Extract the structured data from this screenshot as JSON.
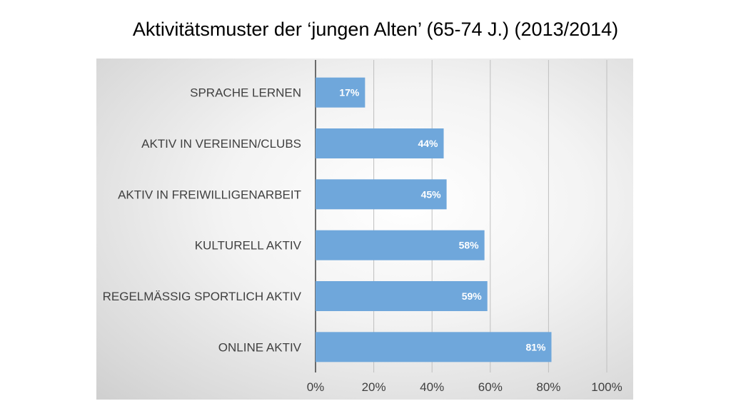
{
  "title": "Aktivitätsmuster der ‘jungen Alten’ (65-74 J.) (2013/2014)",
  "chart_data": {
    "type": "bar",
    "orientation": "horizontal",
    "title": "Aktivitätsmuster der ‘jungen Alten’ (65-74 J.) (2013/2014)",
    "categories": [
      "SPRACHE LERNEN",
      "AKTIV IN VEREINEN/CLUBS",
      "AKTIV IN FREIWILLIGENARBEIT",
      "KULTURELL AKTIV",
      "REGELMÄSSIG SPORTLICH AKTIV",
      "ONLINE AKTIV"
    ],
    "values": [
      17,
      44,
      45,
      58,
      59,
      81
    ],
    "data_labels": [
      "17%",
      "44%",
      "45%",
      "58%",
      "59%",
      "81%"
    ],
    "xlim": [
      0,
      100
    ],
    "x_ticks": [
      0,
      20,
      40,
      60,
      80,
      100
    ],
    "x_tick_labels": [
      "0%",
      "20%",
      "40%",
      "60%",
      "80%",
      "100%"
    ],
    "grid": true,
    "legend": "none",
    "bar_color": "#6fa7db"
  }
}
